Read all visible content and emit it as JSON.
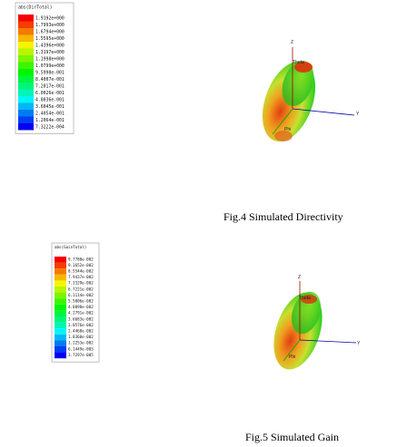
{
  "figures": [
    {
      "legend": {
        "title": "abs(DirTotal)",
        "labels": [
          "1.9192e+000",
          "1.7993e+000",
          "1.6794e+000",
          "1.5595e+000",
          "1.4396e+000",
          "1.3197e+000",
          "1.1998e+000",
          "1.0799e+000",
          "9.5998e-001",
          "8.4007e-001",
          "7.2017e-001",
          "6.0026e-001",
          "4.8036e-001",
          "3.6045e-001",
          "2.4054e-001",
          "1.2064e-001",
          "7.3222e-004"
        ]
      },
      "axes": {
        "z": "Z",
        "y": "Y",
        "theta": "Theta",
        "phi": "Phi"
      },
      "caption": "Fig.4 Simulated Directivity"
    },
    {
      "legend": {
        "title": "abs(GainTotal)",
        "labels": [
          "9.7780e-002",
          "9.1652e-002",
          "8.5544e-002",
          "7.9437e-002",
          "7.3329e-002",
          "6.7221e-002",
          "6.1114e-002",
          "5.5006e-002",
          "4.8898e-002",
          "4.2791e-002",
          "3.6683e-002",
          "3.0576e-002",
          "2.4468e-002",
          "1.8360e-002",
          "1.2253e-002",
          "6.1449e-003",
          "3.7297e-005"
        ]
      },
      "axes": {
        "z": "Z",
        "y": "Y",
        "theta": "Theta",
        "phi": "Phi"
      },
      "caption": "Fig.5 Simulated Gain"
    }
  ]
}
